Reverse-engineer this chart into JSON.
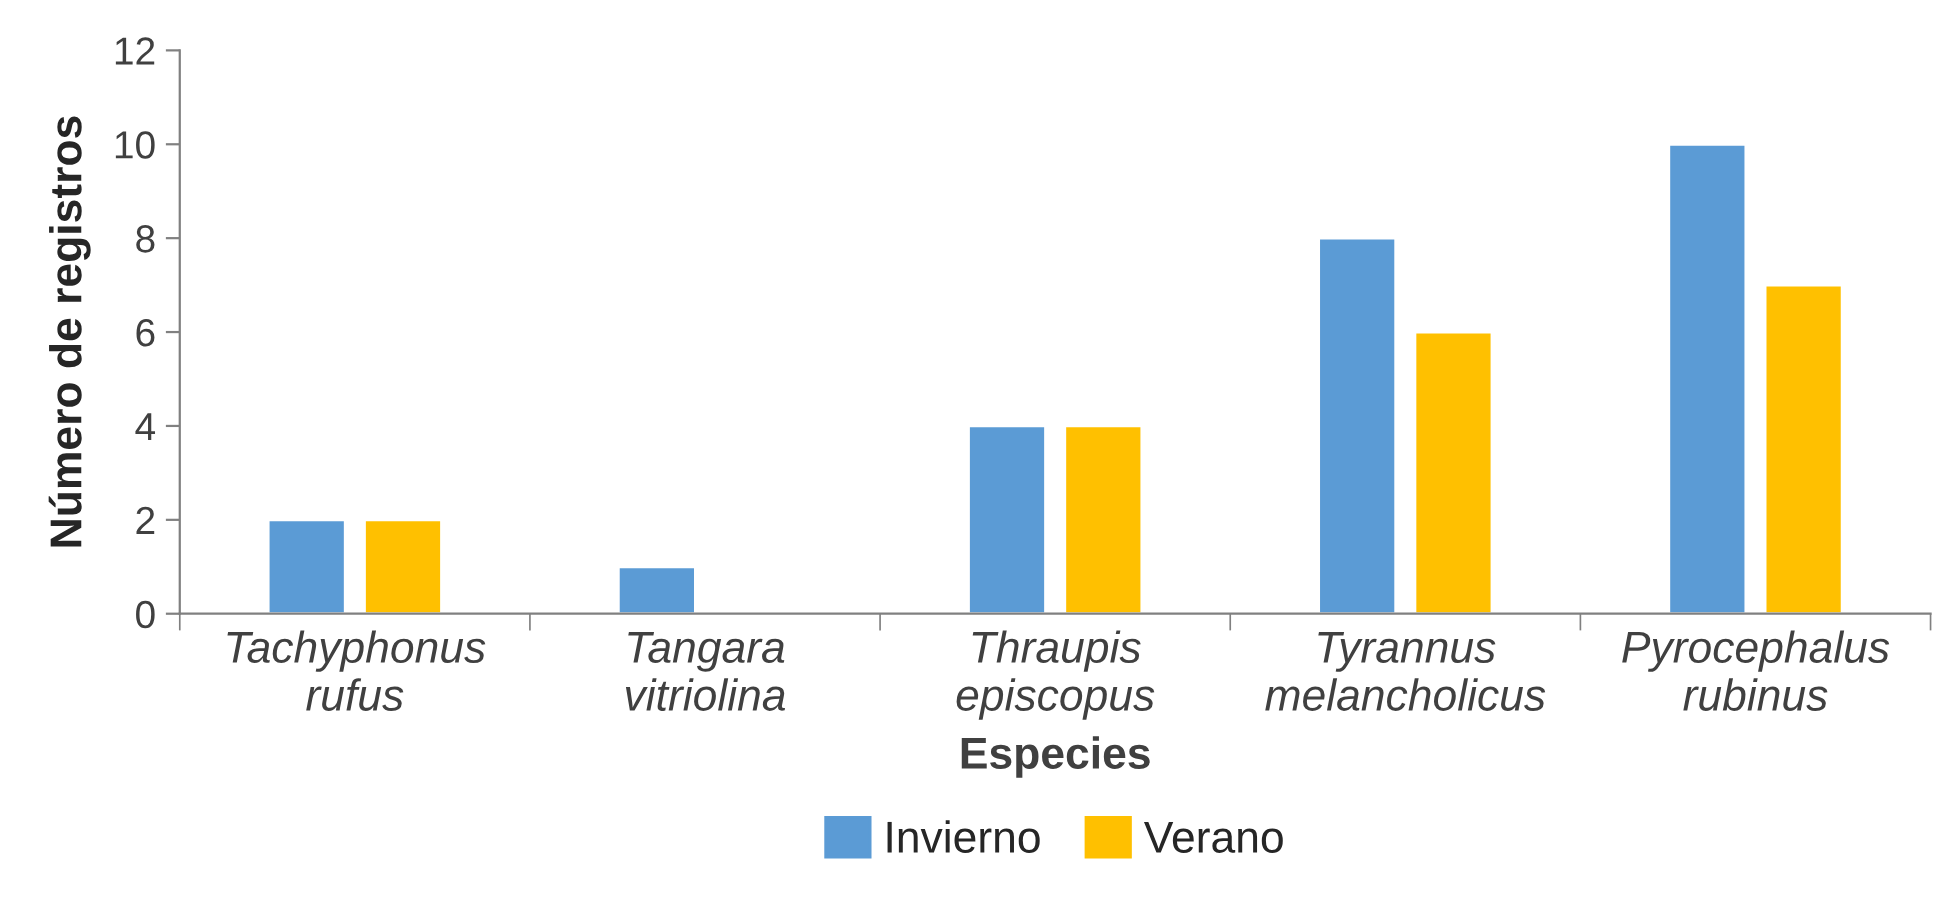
{
  "chart_data": {
    "type": "bar",
    "xlabel": "Especies",
    "ylabel": "Número de registros",
    "categories": [
      "Tachyphonus\nrufus",
      "Tangara\nvitriolina",
      "Thraupis\nepiscopus",
      "Tyrannus\nmelancholicus",
      "Pyrocephalus\nrubinus"
    ],
    "series": [
      {
        "name": "Invierno",
        "color": "#5b9bd5",
        "values": [
          2,
          1,
          4,
          8,
          10
        ]
      },
      {
        "name": "Verano",
        "color": "#ffc000",
        "values": [
          2,
          null,
          4,
          6,
          7
        ]
      }
    ],
    "ylim": [
      0,
      12
    ],
    "yticks": [
      0,
      2,
      4,
      6,
      8,
      10,
      12
    ],
    "grid": false,
    "legend": "bottom"
  }
}
